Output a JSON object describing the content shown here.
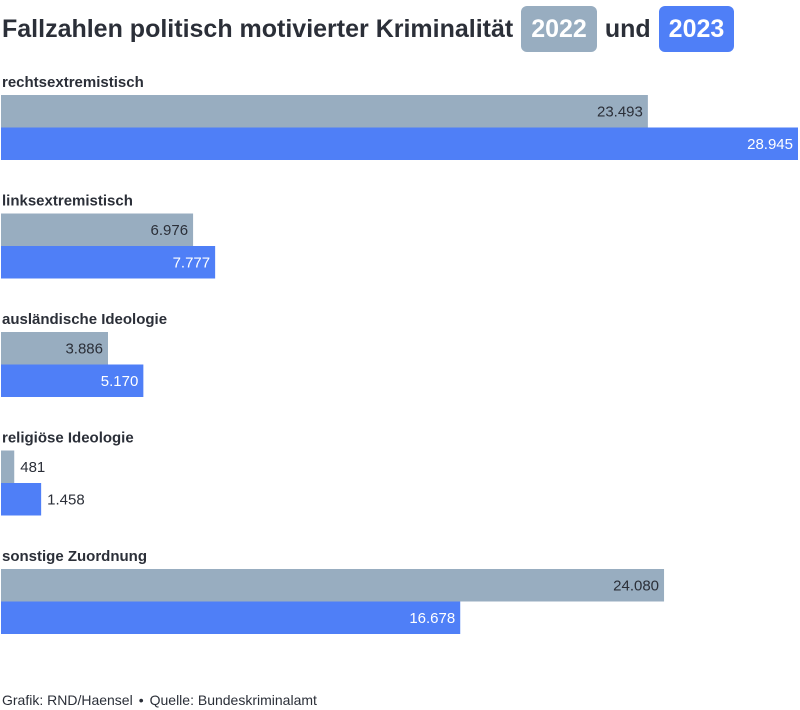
{
  "title": {
    "text": "Fallzahlen politisch motivierter Kriminalität",
    "year1": "2022",
    "connector": "und",
    "year2": "2023"
  },
  "footer": {
    "grafik": "Grafik: RND/Haensel",
    "separator": "•",
    "quelle": "Quelle: Bundeskriminalamt"
  },
  "colors": {
    "series_2022": "#98adc0",
    "series_2023": "#4f7ff7",
    "text": "#2b2f38"
  },
  "chart_data": {
    "type": "bar",
    "orientation": "horizontal",
    "categories": [
      "rechtsextremistisch",
      "linksextremistisch",
      "ausländische Ideologie",
      "religiöse Ideologie",
      "sonstige Zuordnung"
    ],
    "series": [
      {
        "name": "2022",
        "values": [
          23493,
          6976,
          3886,
          481,
          24080
        ],
        "labels": [
          "23.493",
          "6.976",
          "3.886",
          "481",
          "24.080"
        ]
      },
      {
        "name": "2023",
        "values": [
          28945,
          7777,
          5170,
          1458,
          16678
        ],
        "labels": [
          "28.945",
          "7.777",
          "5.170",
          "1.458",
          "16.678"
        ]
      }
    ],
    "xlim": [
      0,
      28945
    ],
    "grid": false
  }
}
